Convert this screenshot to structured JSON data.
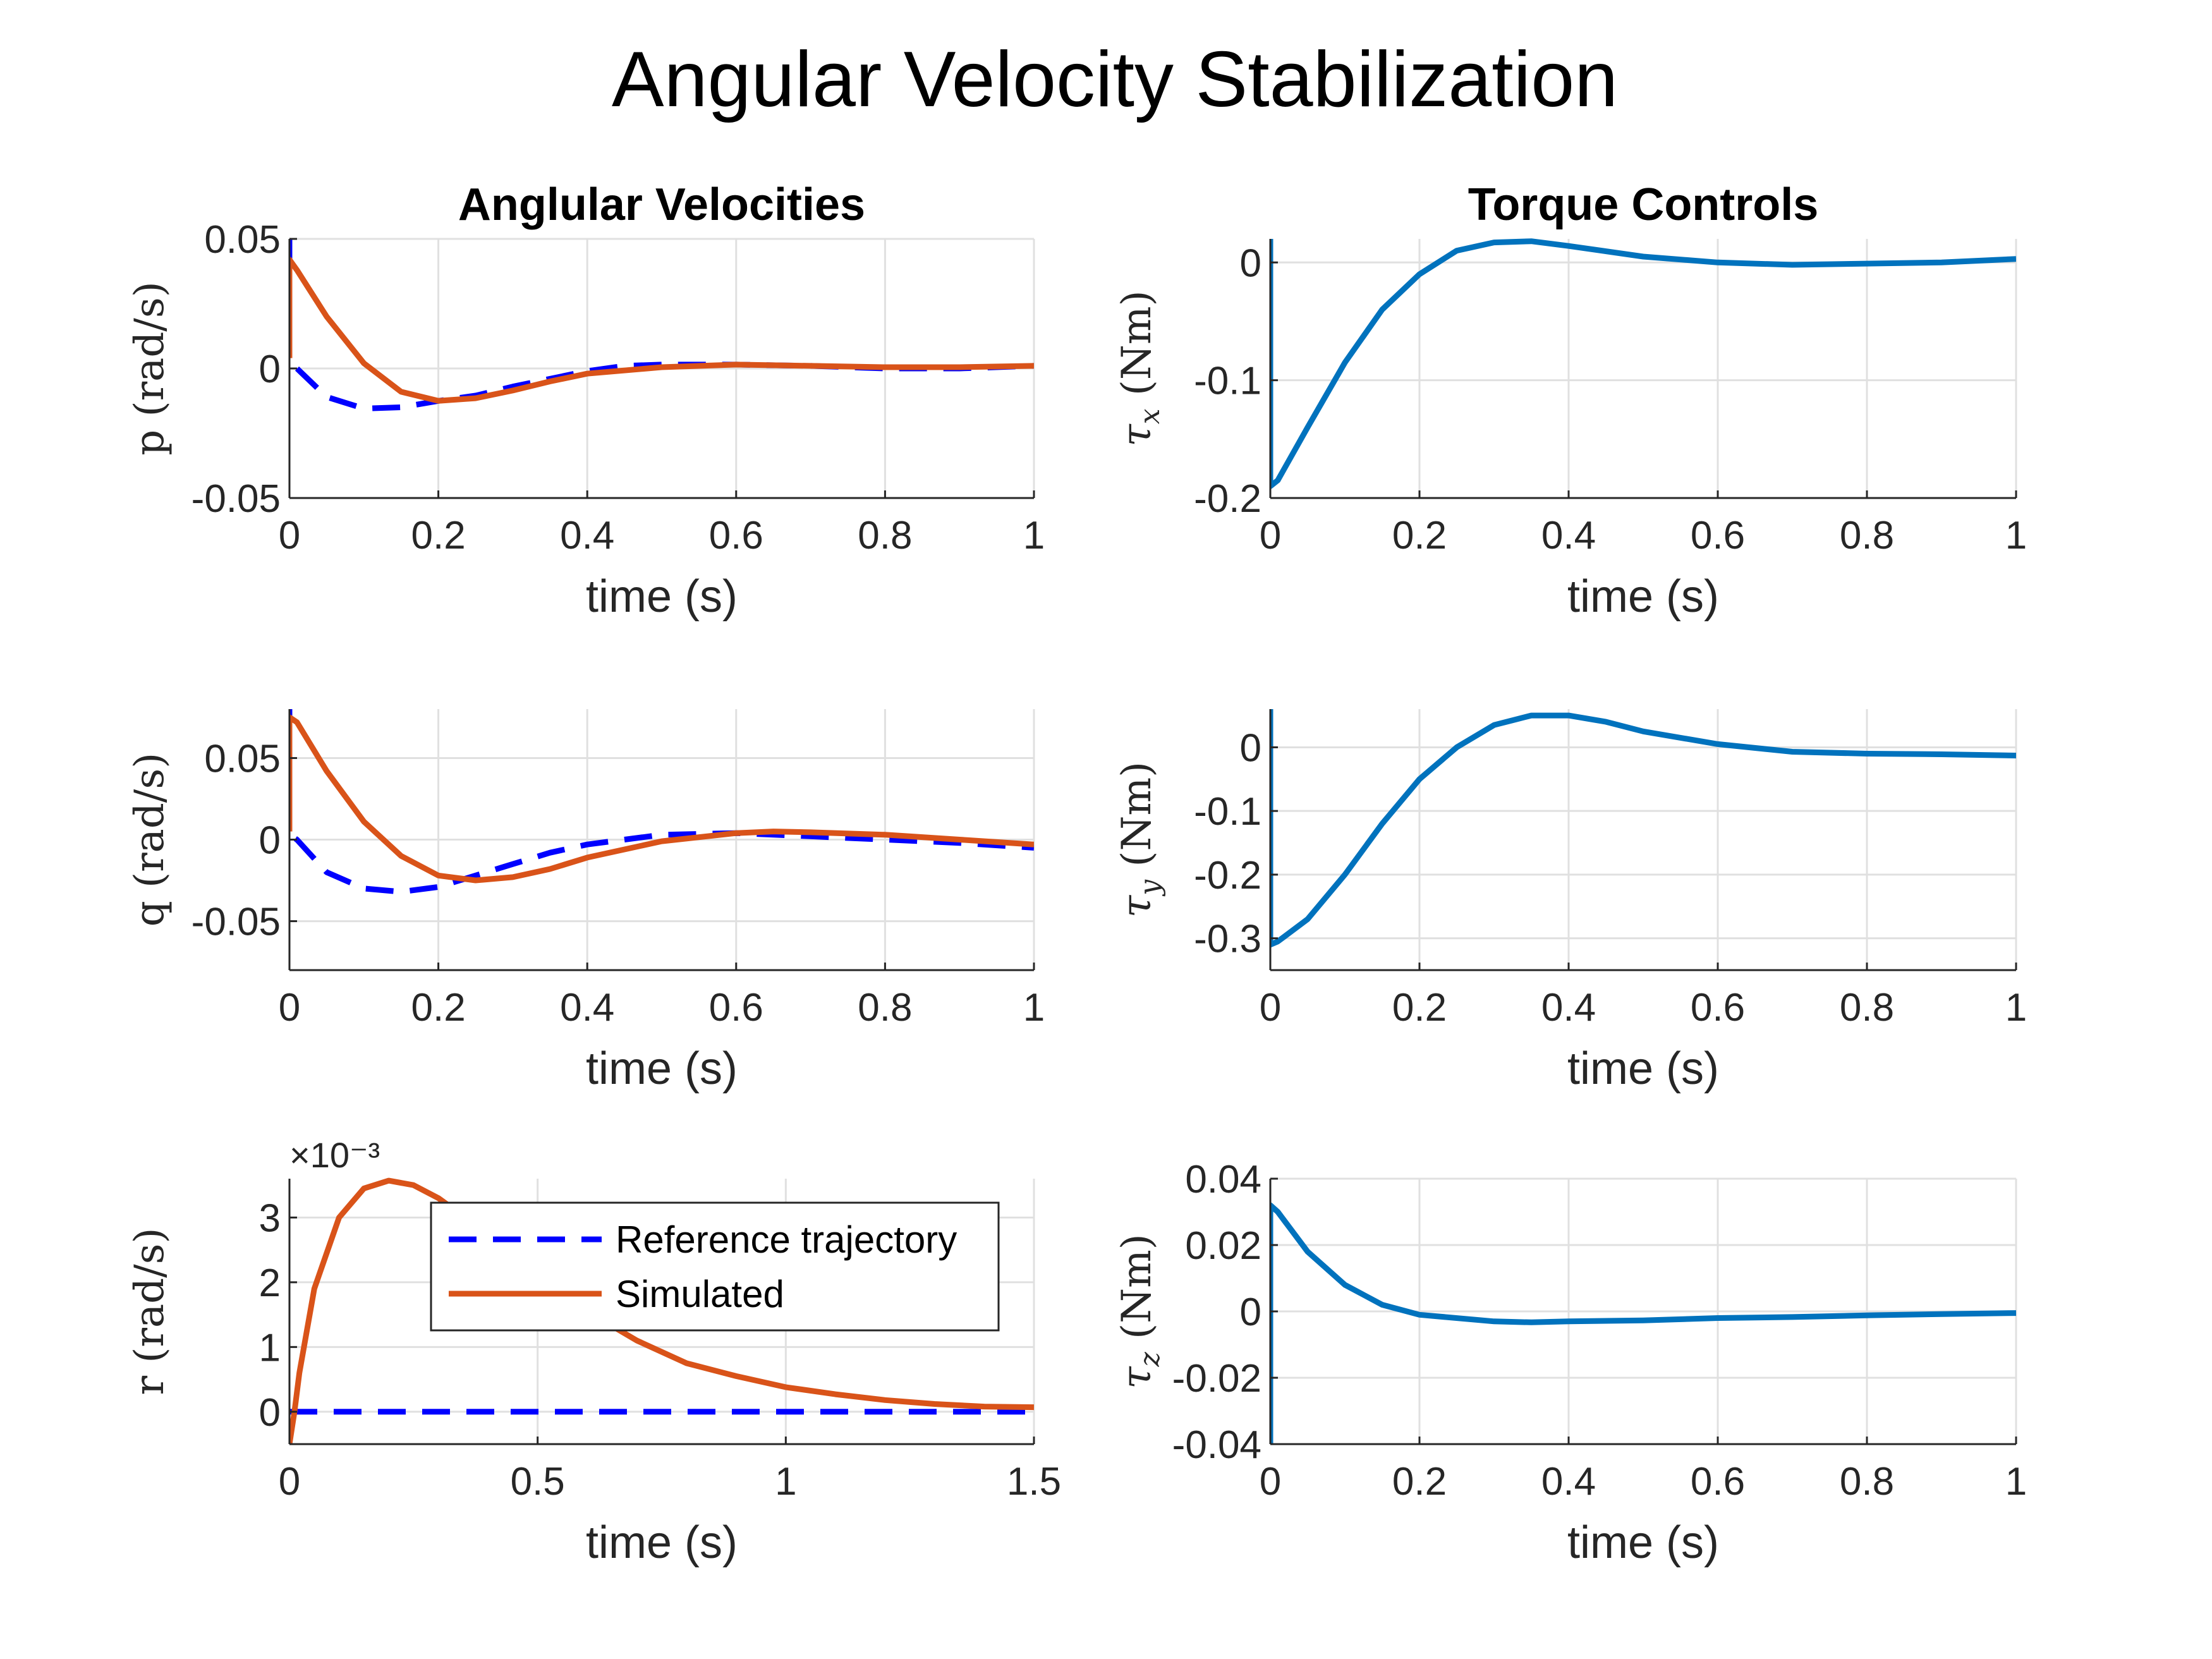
{
  "title": "Angular Velocity Stabilization",
  "colors": {
    "reference": "#0000ff",
    "simulated": "#d95319",
    "torque": "#0072bd",
    "grid": "#e0e0e0",
    "axis": "#262626"
  },
  "legend": {
    "entries": [
      "Reference trajectory",
      "Simulated"
    ],
    "placement": "center-right of bottom-left subplot"
  },
  "chart_data": [
    {
      "id": "p",
      "type": "line",
      "title": "Anglular Velocities",
      "xlabel": "time (s)",
      "ylabel": "p (rad/s)",
      "xlim": [
        0,
        1
      ],
      "ylim": [
        -0.05,
        0.05
      ],
      "xticks": [
        "0",
        "0.2",
        "0.4",
        "0.6",
        "0.8",
        "1"
      ],
      "yticks": [
        "-0.05",
        "0",
        "0.05"
      ],
      "grid": true,
      "series": [
        {
          "name": "Reference trajectory",
          "style": "dashed",
          "x": [
            0,
            0,
            0,
            0.01,
            0.05,
            0.1,
            0.15,
            0.2,
            0.25,
            0.3,
            0.35,
            0.4,
            0.45,
            0.5,
            0.6,
            0.7,
            0.8,
            0.9,
            1.0
          ],
          "y": [
            0.05,
            0.02,
            0.003,
            0.0,
            -0.011,
            -0.0155,
            -0.015,
            -0.0125,
            -0.0105,
            -0.007,
            -0.004,
            -0.001,
            0.001,
            0.0015,
            0.0015,
            0.001,
            0.0,
            0.0,
            0.001
          ]
        },
        {
          "name": "Simulated",
          "style": "solid",
          "x": [
            0,
            0,
            0.01,
            0.05,
            0.1,
            0.15,
            0.2,
            0.25,
            0.3,
            0.35,
            0.4,
            0.5,
            0.6,
            0.7,
            0.8,
            0.9,
            1.0
          ],
          "y": [
            0.004,
            0.042,
            0.038,
            0.02,
            0.002,
            -0.009,
            -0.0125,
            -0.0115,
            -0.0085,
            -0.005,
            -0.002,
            0.0005,
            0.0015,
            0.001,
            0.0005,
            0.0005,
            0.001
          ]
        }
      ]
    },
    {
      "id": "q",
      "type": "line",
      "xlabel": "time (s)",
      "ylabel": "q (rad/s)",
      "xlim": [
        0,
        1
      ],
      "ylim": [
        -0.08,
        0.08
      ],
      "xticks": [
        "0",
        "0.2",
        "0.4",
        "0.6",
        "0.8",
        "1"
      ],
      "yticks": [
        "-0.05",
        "0",
        "0.05"
      ],
      "grid": true,
      "series": [
        {
          "name": "Reference trajectory",
          "style": "dashed",
          "x": [
            0,
            0,
            0,
            0.01,
            0.05,
            0.1,
            0.15,
            0.2,
            0.25,
            0.3,
            0.35,
            0.4,
            0.5,
            0.6,
            0.7,
            0.8,
            0.9,
            1.0
          ],
          "y": [
            0.08,
            0.04,
            0.003,
            0.0,
            -0.02,
            -0.03,
            -0.032,
            -0.029,
            -0.022,
            -0.015,
            -0.008,
            -0.003,
            0.003,
            0.004,
            0.002,
            0.0,
            -0.002,
            -0.005
          ]
        },
        {
          "name": "Simulated",
          "style": "solid",
          "x": [
            0,
            0,
            0.01,
            0.05,
            0.1,
            0.15,
            0.2,
            0.25,
            0.3,
            0.35,
            0.4,
            0.5,
            0.6,
            0.65,
            0.7,
            0.8,
            0.9,
            1.0
          ],
          "y": [
            0.005,
            0.075,
            0.072,
            0.042,
            0.011,
            -0.01,
            -0.022,
            -0.025,
            -0.023,
            -0.018,
            -0.011,
            -0.001,
            0.004,
            0.005,
            0.0045,
            0.003,
            0.0,
            -0.003
          ]
        }
      ]
    },
    {
      "id": "r",
      "type": "line",
      "xlabel": "time (s)",
      "ylabel": "r (rad/s)",
      "exponent_label": "×10⁻³",
      "xlim": [
        0,
        1.5
      ],
      "ylim": [
        -0.5,
        3.6
      ],
      "xticks": [
        "0",
        "0.5",
        "1",
        "1.5"
      ],
      "yticks": [
        "0",
        "1",
        "2",
        "3"
      ],
      "grid": true,
      "series": [
        {
          "name": "Reference trajectory",
          "style": "dashed",
          "x": [
            0,
            1.5
          ],
          "y": [
            0,
            0
          ]
        },
        {
          "name": "Simulated",
          "style": "solid",
          "x": [
            0,
            0.01,
            0.02,
            0.05,
            0.1,
            0.15,
            0.2,
            0.25,
            0.3,
            0.4,
            0.5,
            0.6,
            0.7,
            0.8,
            0.9,
            1.0,
            1.1,
            1.2,
            1.3,
            1.4,
            1.5
          ],
          "y": [
            -0.5,
            0.0,
            0.6,
            1.9,
            3.0,
            3.45,
            3.57,
            3.5,
            3.3,
            2.75,
            2.1,
            1.55,
            1.1,
            0.75,
            0.55,
            0.38,
            0.27,
            0.18,
            0.12,
            0.08,
            0.07
          ]
        }
      ]
    },
    {
      "id": "tau_x",
      "type": "line",
      "title": "Torque Controls",
      "xlabel": "time (s)",
      "ylabel_symbol": "τ",
      "ylabel_subscript": "x",
      "ylabel_unit": "(Nm)",
      "xlim": [
        0,
        1
      ],
      "ylim": [
        -0.2,
        0.02
      ],
      "xticks": [
        "0",
        "0.2",
        "0.4",
        "0.6",
        "0.8",
        "1"
      ],
      "yticks": [
        "-0.2",
        "-0.1",
        "0"
      ],
      "grid": true,
      "series": [
        {
          "name": "tau_x",
          "style": "solid",
          "x": [
            0,
            0,
            0.01,
            0.05,
            0.1,
            0.15,
            0.2,
            0.25,
            0.3,
            0.35,
            0.4,
            0.5,
            0.6,
            0.7,
            0.8,
            0.9,
            1.0
          ],
          "y": [
            0.02,
            -0.19,
            -0.185,
            -0.14,
            -0.085,
            -0.04,
            -0.01,
            0.01,
            0.017,
            0.018,
            0.014,
            0.005,
            0.0,
            -0.002,
            -0.001,
            0.0,
            0.003
          ]
        }
      ]
    },
    {
      "id": "tau_y",
      "type": "line",
      "xlabel": "time (s)",
      "ylabel_symbol": "τ",
      "ylabel_subscript": "y",
      "ylabel_unit": "(Nm)",
      "xlim": [
        0,
        1
      ],
      "ylim": [
        -0.35,
        0.06
      ],
      "xticks": [
        "0",
        "0.2",
        "0.4",
        "0.6",
        "0.8",
        "1"
      ],
      "yticks": [
        "-0.3",
        "-0.2",
        "-0.1",
        "0"
      ],
      "grid": true,
      "series": [
        {
          "name": "tau_y",
          "style": "solid",
          "x": [
            0,
            0,
            0.01,
            0.05,
            0.1,
            0.15,
            0.2,
            0.25,
            0.3,
            0.35,
            0.4,
            0.45,
            0.5,
            0.6,
            0.7,
            0.8,
            0.9,
            1.0
          ],
          "y": [
            0.06,
            -0.31,
            -0.305,
            -0.27,
            -0.2,
            -0.12,
            -0.05,
            0.0,
            0.035,
            0.05,
            0.05,
            0.04,
            0.025,
            0.005,
            -0.007,
            -0.01,
            -0.011,
            -0.013
          ]
        }
      ]
    },
    {
      "id": "tau_z",
      "type": "line",
      "xlabel": "time (s)",
      "ylabel_symbol": "τ",
      "ylabel_subscript": "z",
      "ylabel_unit": "(Nm)",
      "xlim": [
        0,
        1
      ],
      "ylim": [
        -0.04,
        0.04
      ],
      "xticks": [
        "0",
        "0.2",
        "0.4",
        "0.6",
        "0.8",
        "1"
      ],
      "yticks": [
        "-0.04",
        "-0.02",
        "0",
        "0.02",
        "0.04"
      ],
      "grid": true,
      "series": [
        {
          "name": "tau_z",
          "style": "solid",
          "x": [
            0,
            0,
            0.01,
            0.05,
            0.1,
            0.15,
            0.2,
            0.3,
            0.35,
            0.4,
            0.5,
            0.6,
            0.7,
            0.8,
            0.9,
            1.0
          ],
          "y": [
            -0.04,
            0.032,
            0.03,
            0.018,
            0.008,
            0.002,
            -0.001,
            -0.003,
            -0.0033,
            -0.003,
            -0.0027,
            -0.002,
            -0.0017,
            -0.0012,
            -0.0008,
            -0.0005
          ]
        }
      ]
    }
  ]
}
